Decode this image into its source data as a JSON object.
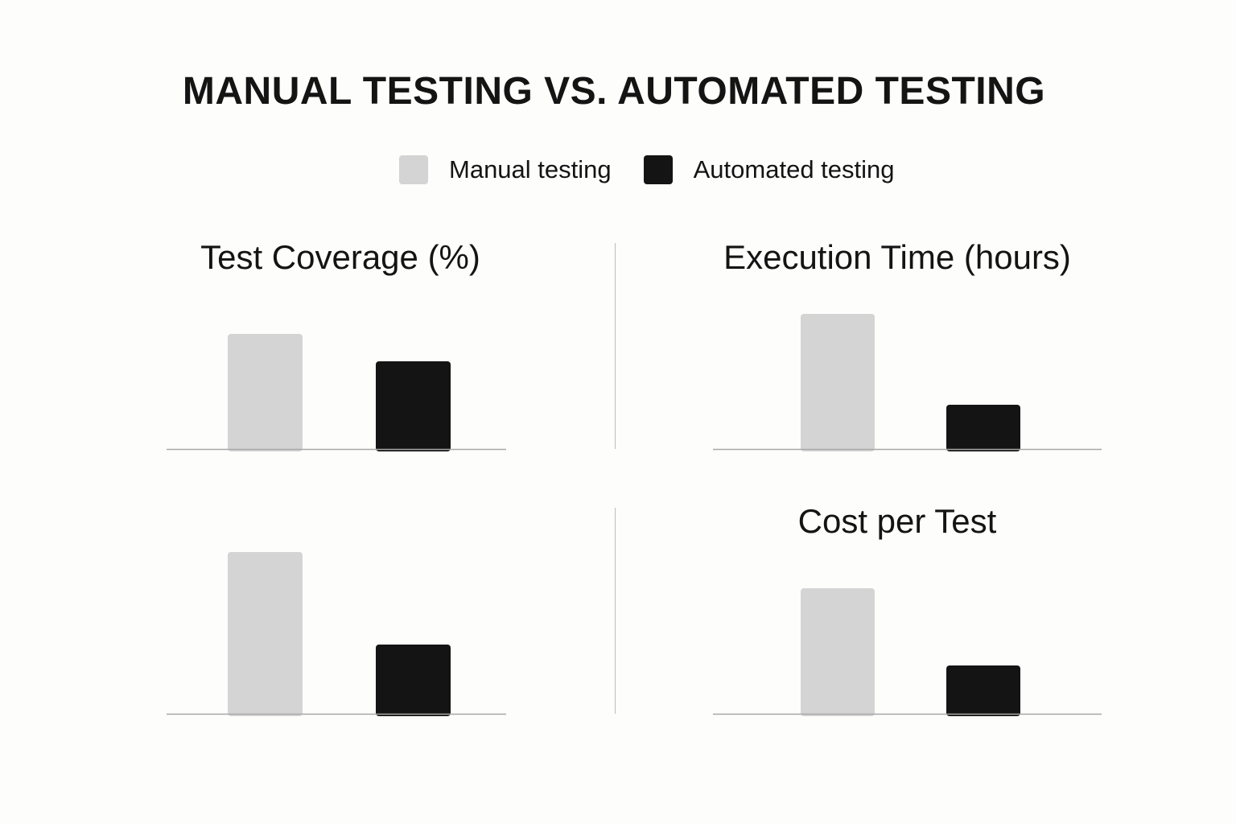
{
  "title": "MANUAL TESTING VS. AUTOMATED TESTING",
  "legend": {
    "items": [
      {
        "label": "Manual testing",
        "color": "#d4d4d4"
      },
      {
        "label": "Automated testing",
        "color": "#141414"
      }
    ]
  },
  "chart_data": [
    {
      "type": "bar",
      "title": "Test Coverage (%)",
      "categories": [
        "Manual testing",
        "Automated testing"
      ],
      "series": [
        {
          "values": [
            143,
            109
          ]
        }
      ],
      "colors": [
        "#d4d4d4",
        "#141414"
      ],
      "ylim": [
        0,
        200
      ],
      "grid": false
    },
    {
      "type": "bar",
      "title": "Execution Time (hours)",
      "categories": [
        "Manual testing",
        "Automated testing"
      ],
      "series": [
        {
          "values": [
            168,
            55
          ]
        }
      ],
      "colors": [
        "#d4d4d4",
        "#141414"
      ],
      "ylim": [
        0,
        200
      ],
      "grid": false
    },
    {
      "type": "bar",
      "title": "",
      "categories": [
        "Manual testing",
        "Automated testing"
      ],
      "series": [
        {
          "values": [
            201,
            86
          ]
        }
      ],
      "colors": [
        "#d4d4d4",
        "#141414"
      ],
      "ylim": [
        0,
        255
      ],
      "grid": false
    },
    {
      "type": "bar",
      "title": "Cost per Test",
      "categories": [
        "Manual testing",
        "Automated testing"
      ],
      "series": [
        {
          "values": [
            156,
            60
          ]
        }
      ],
      "colors": [
        "#d4d4d4",
        "#141414"
      ],
      "ylim": [
        0,
        255
      ],
      "grid": false
    }
  ]
}
